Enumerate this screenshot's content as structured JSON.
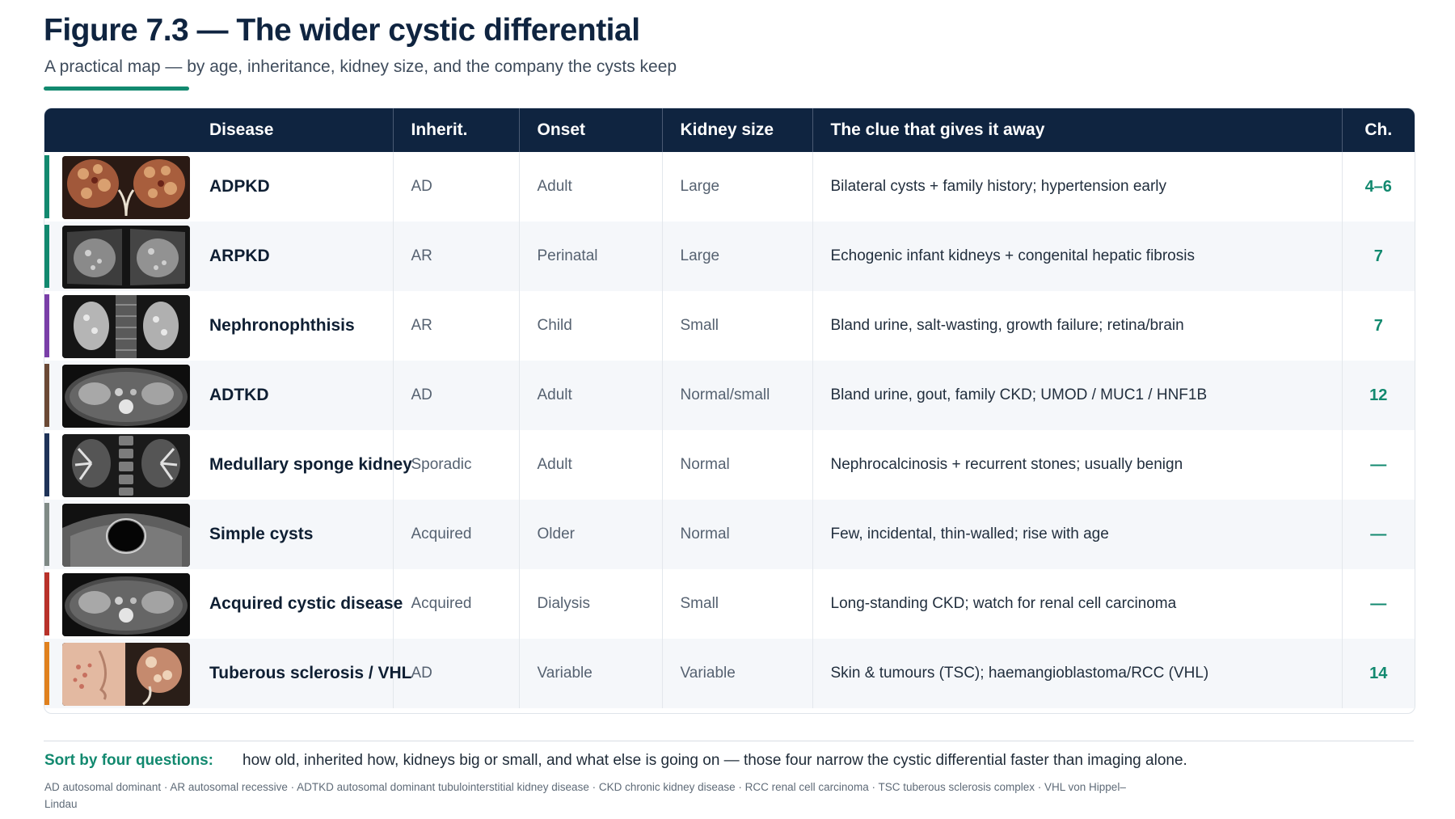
{
  "header": {
    "title": "Figure 7.3 — The wider cystic differential",
    "subtitle": "A practical map — by age, inheritance, kidney size, and the company the cysts keep"
  },
  "colors": {
    "navy": "#0f2440",
    "accent": "#12896f",
    "header_bg": "#0f2440"
  },
  "table": {
    "headers": [
      "Disease",
      "Inherit.",
      "Onset",
      "Kidney size",
      "The clue that gives it away",
      "Ch."
    ],
    "rows": [
      {
        "disease": "ADPKD",
        "inherit": "AD",
        "onset": "Adult",
        "size": "Large",
        "clue": "Bilateral cysts + family history; hypertension early",
        "ch": "4–6",
        "color": "#12896f",
        "image": "gross-kidneys-icon"
      },
      {
        "disease": "ARPKD",
        "inherit": "AR",
        "onset": "Perinatal",
        "size": "Large",
        "clue": "Echogenic infant kidneys + congenital hepatic fibrosis",
        "ch": "7",
        "color": "#12896f",
        "image": "ultrasound-icon"
      },
      {
        "disease": "Nephronophthisis",
        "inherit": "AR",
        "onset": "Child",
        "size": "Small",
        "clue": "Bland urine, salt-wasting, growth failure; retina/brain",
        "ch": "7",
        "color": "#7a3fa8",
        "image": "mri-coronal-icon"
      },
      {
        "disease": "ADTKD",
        "inherit": "AD",
        "onset": "Adult",
        "size": "Normal/small",
        "clue": "Bland urine, gout, family CKD; UMOD / MUC1 / HNF1B",
        "ch": "12",
        "color": "#6b4a36",
        "image": "ct-axial-icon"
      },
      {
        "disease": "Medullary sponge kidney",
        "inherit": "Sporadic",
        "onset": "Adult",
        "size": "Normal",
        "clue": "Nephrocalcinosis + recurrent stones; usually benign",
        "ch": "—",
        "color": "#1f3358",
        "image": "urogram-icon"
      },
      {
        "disease": "Simple cysts",
        "inherit": "Acquired",
        "onset": "Older",
        "size": "Normal",
        "clue": "Few, incidental, thin-walled; rise with age",
        "ch": "—",
        "color": "#7f8a86",
        "image": "ultrasound-cyst-icon"
      },
      {
        "disease": "Acquired cystic disease",
        "inherit": "Acquired",
        "onset": "Dialysis",
        "size": "Small",
        "clue": "Long-standing CKD; watch for renal cell carcinoma",
        "ch": "—",
        "color": "#b8322a",
        "image": "ct-axial-icon"
      },
      {
        "disease": "Tuberous sclerosis / VHL",
        "inherit": "AD",
        "onset": "Variable",
        "size": "Variable",
        "clue": "Skin & tumours (TSC); haemangioblastoma/RCC (VHL)",
        "ch": "14",
        "color": "#e0811e",
        "image": "skin-and-kidney-icon"
      }
    ]
  },
  "footer": {
    "sort_label": "Sort by four questions:",
    "sort_text": "how old, inherited how, kidneys big or small, and what else is going on — those four narrow the cystic differential faster than imaging alone.",
    "abbreviations": "AD autosomal dominant · AR autosomal recessive · ADTKD autosomal dominant tubulointerstitial kidney disease · CKD chronic kidney disease · RCC renal cell carcinoma · TSC tuberous sclerosis complex · VHL von Hippel–Lindau"
  }
}
